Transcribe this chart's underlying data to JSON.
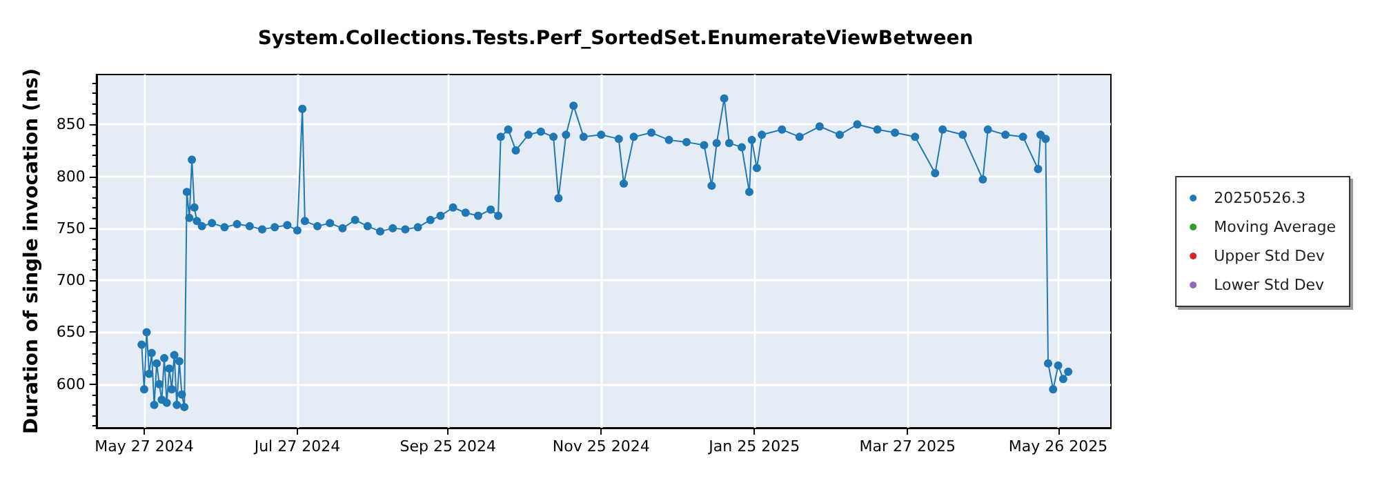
{
  "chart_data": {
    "type": "line",
    "title": "System.Collections.Tests.Perf_SortedSet.EnumerateViewBetween",
    "ylabel": "Duration of single invocation (ns)",
    "xlim": [
      "2024-05-08",
      "2025-06-16"
    ],
    "ylim": [
      558,
      898
    ],
    "xticks": [
      {
        "value": "2024-05-27",
        "label": "May 27 2024"
      },
      {
        "value": "2024-07-27",
        "label": "Jul 27 2024"
      },
      {
        "value": "2024-09-25",
        "label": "Sep 25 2024"
      },
      {
        "value": "2024-11-25",
        "label": "Nov 25 2024"
      },
      {
        "value": "2025-01-25",
        "label": "Jan 25 2025"
      },
      {
        "value": "2025-03-27",
        "label": "Mar 27 2025"
      },
      {
        "value": "2025-05-26",
        "label": "May 26 2025"
      }
    ],
    "yticks": [
      600,
      650,
      700,
      750,
      800,
      850
    ],
    "grid": true,
    "legend": "right",
    "marker": "circle",
    "line_style": "solid",
    "series": [
      {
        "name": "20250526.3",
        "color": "#1f77b4",
        "x": [
          "2024-05-26",
          "2024-05-27",
          "2024-05-28",
          "2024-05-29",
          "2024-05-30",
          "2024-05-31",
          "2024-06-01",
          "2024-06-02",
          "2024-06-03",
          "2024-06-04",
          "2024-06-05",
          "2024-06-06",
          "2024-06-07",
          "2024-06-08",
          "2024-06-09",
          "2024-06-10",
          "2024-06-11",
          "2024-06-12",
          "2024-06-13",
          "2024-06-14",
          "2024-06-15",
          "2024-06-16",
          "2024-06-17",
          "2024-06-19",
          "2024-06-23",
          "2024-06-28",
          "2024-07-03",
          "2024-07-08",
          "2024-07-13",
          "2024-07-18",
          "2024-07-23",
          "2024-07-27",
          "2024-07-29",
          "2024-07-30",
          "2024-08-04",
          "2024-08-09",
          "2024-08-14",
          "2024-08-19",
          "2024-08-24",
          "2024-08-29",
          "2024-09-03",
          "2024-09-08",
          "2024-09-13",
          "2024-09-18",
          "2024-09-22",
          "2024-09-27",
          "2024-10-02",
          "2024-10-07",
          "2024-10-12",
          "2024-10-15",
          "2024-10-16",
          "2024-10-19",
          "2024-10-22",
          "2024-10-27",
          "2024-11-01",
          "2024-11-06",
          "2024-11-08",
          "2024-11-11",
          "2024-11-14",
          "2024-11-18",
          "2024-11-25",
          "2024-12-02",
          "2024-12-04",
          "2024-12-08",
          "2024-12-15",
          "2024-12-22",
          "2024-12-29",
          "2025-01-05",
          "2025-01-08",
          "2025-01-10",
          "2025-01-13",
          "2025-01-15",
          "2025-01-20",
          "2025-01-23",
          "2025-01-24",
          "2025-01-26",
          "2025-01-28",
          "2025-02-05",
          "2025-02-12",
          "2025-02-20",
          "2025-02-28",
          "2025-03-07",
          "2025-03-15",
          "2025-03-22",
          "2025-03-30",
          "2025-04-07",
          "2025-04-10",
          "2025-04-18",
          "2025-04-26",
          "2025-04-28",
          "2025-05-05",
          "2025-05-12",
          "2025-05-18",
          "2025-05-19",
          "2025-05-21",
          "2025-05-22",
          "2025-05-24",
          "2025-05-26",
          "2025-05-28",
          "2025-05-30"
        ],
        "values": [
          638,
          595,
          650,
          610,
          630,
          580,
          620,
          600,
          585,
          625,
          582,
          615,
          595,
          628,
          580,
          622,
          590,
          578,
          785,
          760,
          816,
          770,
          757,
          752,
          755,
          751,
          754,
          752,
          749,
          751,
          753,
          748,
          865,
          757,
          752,
          755,
          750,
          758,
          752,
          747,
          750,
          749,
          751,
          758,
          762,
          770,
          765,
          762,
          768,
          762,
          838,
          845,
          825,
          840,
          843,
          838,
          779,
          840,
          868,
          838,
          840,
          836,
          793,
          838,
          842,
          835,
          833,
          830,
          791,
          832,
          875,
          832,
          828,
          785,
          835,
          808,
          840,
          845,
          838,
          848,
          840,
          850,
          845,
          842,
          838,
          803,
          845,
          840,
          797,
          845,
          840,
          838,
          807,
          840,
          836,
          620,
          595,
          618,
          605,
          612
        ]
      },
      {
        "name": "Moving Average",
        "color": "#2ca02c"
      },
      {
        "name": "Upper Std Dev",
        "color": "#d62728"
      },
      {
        "name": "Lower Std Dev",
        "color": "#9467bd"
      }
    ]
  }
}
